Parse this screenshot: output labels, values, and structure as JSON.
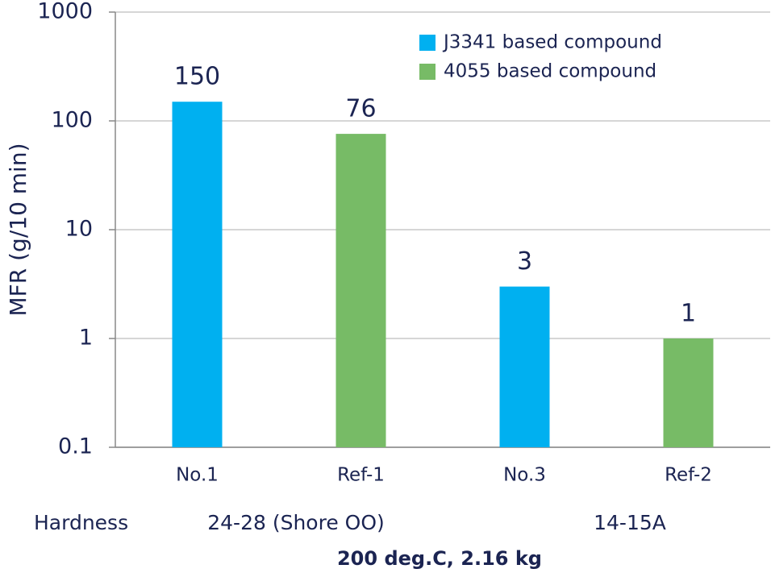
{
  "chart_data": {
    "type": "bar",
    "y_label": "MFR (g/10 min)",
    "categories": [
      "No.1",
      "Ref-1",
      "No.3",
      "Ref-2"
    ],
    "series": [
      {
        "name": "J3341 based compound",
        "color": "#00b0f0",
        "values": [
          150,
          null,
          3,
          null
        ]
      },
      {
        "name": "4055 based compound",
        "color": "#77bb66",
        "values": [
          null,
          76,
          null,
          1
        ]
      }
    ],
    "ylim": [
      0.1,
      1000
    ],
    "yticks": [
      0.1,
      1,
      10,
      100,
      1000
    ],
    "log_scale": true,
    "grid": true,
    "legend": "top-right",
    "annotations": {
      "hardness_label": "Hardness",
      "hardness_groups": [
        "24-28 (Shore OO)",
        "14-15A"
      ],
      "condition": "200 deg.C, 2.16 kg"
    }
  }
}
